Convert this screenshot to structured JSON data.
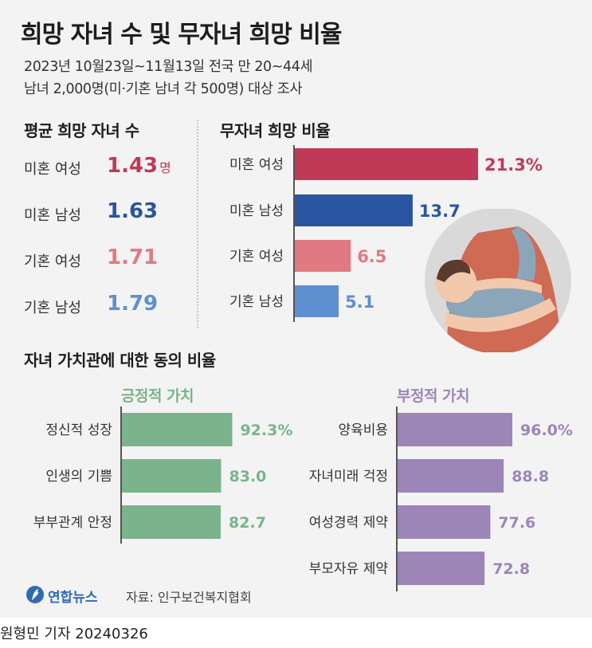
{
  "header": {
    "title": "희망 자녀 수 및 무자녀 희망 비율",
    "subtitle_line1": "2023년 10월23일~11월13일 전국 만 20~44세",
    "subtitle_line2": "남녀 2,000명(미·기혼 남녀 각 500명) 대상 조사"
  },
  "average": {
    "heading": "평균 희망 자녀 수",
    "unit": "명",
    "rows": [
      {
        "label": "미혼 여성",
        "value": "1.43",
        "color": "#c03a58"
      },
      {
        "label": "미혼 남성",
        "value": "1.63",
        "color": "#2a55a0"
      },
      {
        "label": "기혼 여성",
        "value": "1.71",
        "color": "#e07a82"
      },
      {
        "label": "기혼 남성",
        "value": "1.79",
        "color": "#5f8fd0"
      }
    ]
  },
  "footer": {
    "logo_text": "연합뉴스",
    "source": "자료: 인구보건복지협회",
    "byline": "원형민 기자  20240326"
  },
  "chart_data": [
    {
      "type": "bar",
      "orientation": "horizontal",
      "title": "무자녀 희망 비율",
      "categories": [
        "미혼 여성",
        "미혼 남성",
        "기혼 여성",
        "기혼 남성"
      ],
      "values": [
        21.3,
        13.7,
        6.5,
        5.1
      ],
      "value_labels": [
        "21.3%",
        "13.7",
        "6.5",
        "5.1"
      ],
      "colors": [
        "#c03a58",
        "#2a55a0",
        "#e07a82",
        "#5f8fd0"
      ],
      "xlim": [
        0,
        21.3
      ]
    },
    {
      "type": "bar",
      "orientation": "horizontal",
      "title": "자녀 가치관에 대한 동의 비율",
      "groups": [
        {
          "name": "긍정적 가치",
          "color": "#7bb38c",
          "categories": [
            "정신적 성장",
            "인생의 기쁨",
            "부부관계 안정"
          ],
          "values": [
            92.3,
            83.0,
            82.7
          ],
          "value_labels": [
            "92.3%",
            "83.0",
            "82.7"
          ]
        },
        {
          "name": "부정적 가치",
          "color": "#9c86b8",
          "categories": [
            "양육비용",
            "자녀미래 걱정",
            "여성경력 제약",
            "부모자유 제약"
          ],
          "values": [
            96.0,
            88.8,
            77.6,
            72.8
          ],
          "value_labels": [
            "96.0%",
            "88.8",
            "77.6",
            "72.8"
          ]
        }
      ],
      "xlim": [
        0,
        100
      ]
    }
  ]
}
